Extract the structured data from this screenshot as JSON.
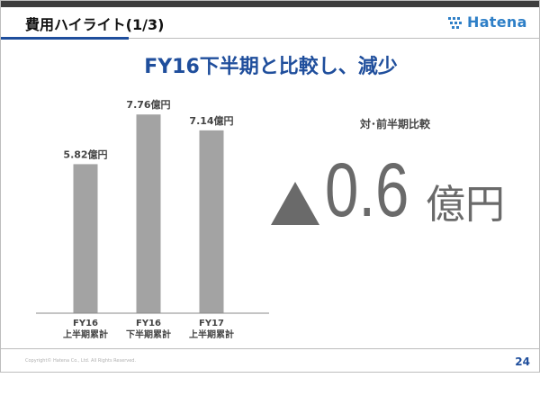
{
  "header": {
    "title": "費用ハイライト(1/3)",
    "logo_text": "Hatena"
  },
  "slide_title": "FY16下半期と比較し、減少",
  "comparison": {
    "label": "対･前半期比較",
    "symbol": "▲",
    "value": "0.6",
    "unit": "億円"
  },
  "footer": {
    "copyright": "Copyright©  Hatena Co., Ltd.   All Rights Reserved.",
    "page_number": "24"
  },
  "colors": {
    "bar": "#a3a3a3",
    "title_blue": "#1f4e9c",
    "logo_blue": "#2e7fc7",
    "delta_gray": "#6a6a6a"
  },
  "chart_data": {
    "type": "bar",
    "categories": [
      [
        "FY16",
        "上半期累計"
      ],
      [
        "FY16",
        "下半期累計"
      ],
      [
        "FY17",
        "上半期累計"
      ]
    ],
    "values": [
      5.82,
      7.76,
      7.14
    ],
    "data_labels": [
      "5.82億円",
      "7.76億円",
      "7.14億円"
    ],
    "ylim": [
      0,
      8.4
    ],
    "grid": false,
    "legend": "none",
    "title": "",
    "xlabel": "",
    "ylabel": ""
  }
}
